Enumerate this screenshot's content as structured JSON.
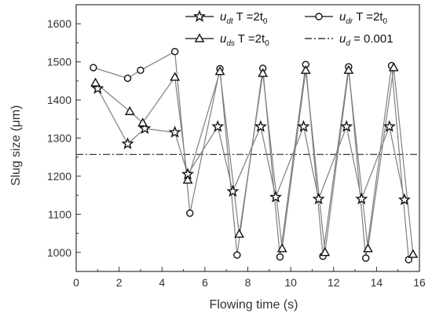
{
  "chart_data": {
    "type": "line",
    "xlabel": "Flowing time (s)",
    "ylabel": "Slug size (μm)",
    "xlim": [
      0,
      16
    ],
    "ylim": [
      950,
      1650
    ],
    "xticks": [
      0,
      2,
      4,
      6,
      8,
      10,
      12,
      14,
      16
    ],
    "yticks": [
      1000,
      1100,
      1200,
      1300,
      1400,
      1500,
      1600
    ],
    "grid": false,
    "legend_position": "top-right",
    "series": [
      {
        "name_parts": [
          "u",
          "dt",
          " T =2t",
          "0"
        ],
        "marker": "star",
        "color": "#7f7f7f",
        "x": [
          1.0,
          2.4,
          3.2,
          4.6,
          5.2,
          6.6,
          7.3,
          8.6,
          9.3,
          10.6,
          11.3,
          12.6,
          13.3,
          14.6,
          15.3
        ],
        "y": [
          1430,
          1285,
          1325,
          1315,
          1205,
          1330,
          1160,
          1330,
          1145,
          1330,
          1140,
          1330,
          1140,
          1330,
          1138
        ]
      },
      {
        "name_parts": [
          "u",
          "dr",
          " T =2t",
          "0"
        ],
        "marker": "circle",
        "color": "#7f7f7f",
        "x": [
          0.8,
          2.4,
          3.0,
          4.6,
          5.3,
          6.7,
          7.5,
          8.7,
          9.5,
          10.7,
          11.5,
          12.7,
          13.5,
          14.7,
          15.5
        ],
        "y": [
          1485,
          1457,
          1478,
          1527,
          1103,
          1482,
          993,
          1483,
          988,
          1493,
          990,
          1487,
          985,
          1490,
          981
        ]
      },
      {
        "name_parts": [
          "u",
          "ds",
          " T =2t",
          "0"
        ],
        "marker": "triangle",
        "color": "#7f7f7f",
        "x": [
          0.9,
          2.5,
          3.1,
          4.6,
          5.2,
          6.7,
          7.6,
          8.7,
          9.6,
          10.7,
          11.6,
          12.7,
          13.6,
          14.8,
          15.7
        ],
        "y": [
          1445,
          1370,
          1340,
          1460,
          1190,
          1475,
          1048,
          1470,
          1010,
          1478,
          1000,
          1478,
          1010,
          1485,
          995
        ]
      }
    ],
    "reference_line": {
      "name_parts": [
        "u",
        "d",
        " = 0.001"
      ],
      "y": 1257,
      "style": "dash-dot",
      "color": "#222222"
    }
  }
}
